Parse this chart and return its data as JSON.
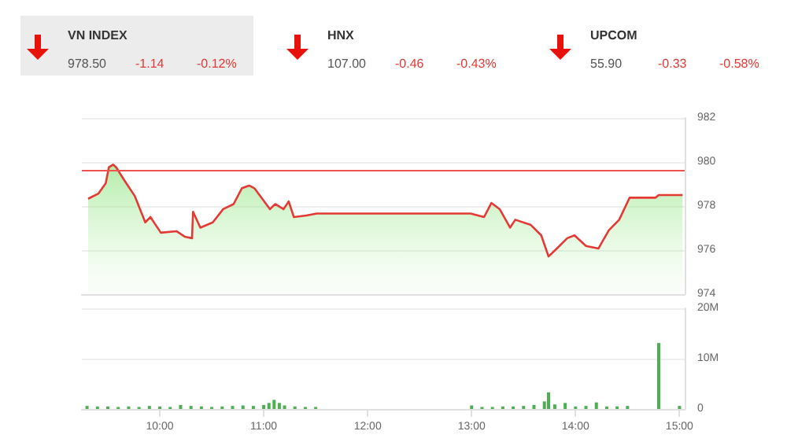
{
  "chart_data": [
    {
      "type": "other",
      "annotations": [
        "VN INDEX",
        "978.50",
        "-1.14",
        "-0.12%",
        "HNX",
        "107.00",
        "-0.46",
        "-0.43%",
        "UPCOM",
        "55.90",
        "-0.33",
        "-0.58%"
      ]
    },
    {
      "type": "area",
      "tick_labels": "y",
      "grid": "y",
      "marker": "none",
      "xlim": [
        9.25,
        15.05
      ],
      "ylim": [
        974,
        982
      ],
      "yticks": [
        974,
        976,
        978,
        980,
        982
      ],
      "ref_lines": [
        {
          "axis": "y",
          "value": 979.64,
          "color": "#ef5350"
        }
      ],
      "series": [
        {
          "color": "#e53935",
          "x": [
            9.31,
            9.41,
            9.48,
            9.51,
            9.55,
            9.58,
            9.66,
            9.76,
            9.86,
            9.91,
            10.01,
            10.16,
            10.24,
            10.31,
            10.32,
            10.39,
            10.51,
            10.61,
            10.71,
            10.79,
            10.86,
            10.91,
            11.06,
            11.11,
            11.19,
            11.24,
            11.29,
            11.41,
            11.51,
            12.99,
            13.12,
            13.19,
            13.27,
            13.37,
            13.42,
            13.57,
            13.67,
            13.74,
            13.82,
            13.92,
            13.99,
            14.1,
            14.22,
            14.32,
            14.42,
            14.52,
            14.77,
            14.8,
            15.03
          ],
          "values": [
            978.33,
            978.57,
            979.04,
            979.76,
            979.88,
            979.76,
            979.16,
            978.45,
            977.26,
            977.5,
            976.79,
            976.86,
            976.61,
            976.54,
            977.74,
            977.02,
            977.26,
            977.86,
            978.09,
            978.81,
            978.93,
            978.81,
            977.86,
            978.09,
            977.86,
            978.21,
            977.5,
            977.57,
            977.66,
            977.66,
            977.5,
            978.14,
            977.86,
            977.02,
            977.38,
            977.14,
            976.67,
            975.71,
            976.07,
            976.54,
            976.67,
            976.19,
            976.07,
            976.9,
            977.38,
            978.38,
            978.38,
            978.5,
            978.5
          ]
        }
      ]
    },
    {
      "type": "bar",
      "grid": "y",
      "xlim": [
        9.25,
        15.05
      ],
      "xticks": [
        {
          "value": 10,
          "label": "10:00"
        },
        {
          "value": 11,
          "label": "11:00"
        },
        {
          "value": 12,
          "label": "12:00"
        },
        {
          "value": 13,
          "label": "13:00"
        },
        {
          "value": 14,
          "label": "14:00"
        },
        {
          "value": 15,
          "label": "15:00"
        }
      ],
      "ylim": [
        0,
        20
      ],
      "yticks": [
        0,
        {
          "value": 10,
          "label": "10M"
        },
        {
          "value": 20,
          "label": "20M"
        }
      ],
      "series": [
        {
          "color": "#4caf50",
          "x": [
            9.3,
            9.4,
            9.5,
            9.6,
            9.7,
            9.8,
            9.9,
            10.0,
            10.1,
            10.2,
            10.3,
            10.4,
            10.5,
            10.6,
            10.7,
            10.8,
            10.9,
            11.0,
            11.05,
            11.1,
            11.15,
            11.2,
            11.3,
            11.4,
            11.5,
            13.0,
            13.1,
            13.2,
            13.3,
            13.4,
            13.5,
            13.6,
            13.7,
            13.74,
            13.8,
            13.9,
            14.0,
            14.1,
            14.2,
            14.3,
            14.4,
            14.5,
            14.8,
            15.0
          ],
          "values": [
            0.6,
            0.5,
            0.5,
            0.4,
            0.5,
            0.4,
            0.6,
            0.5,
            0.4,
            0.8,
            0.6,
            0.5,
            0.4,
            0.5,
            0.6,
            0.7,
            0.6,
            0.8,
            1.2,
            1.8,
            1.2,
            0.7,
            0.5,
            0.4,
            0.4,
            0.7,
            0.4,
            0.4,
            0.5,
            0.5,
            0.6,
            0.8,
            1.5,
            3.3,
            0.9,
            1.2,
            0.5,
            0.6,
            1.3,
            0.5,
            0.5,
            0.6,
            13.1,
            0.6
          ]
        }
      ]
    }
  ]
}
